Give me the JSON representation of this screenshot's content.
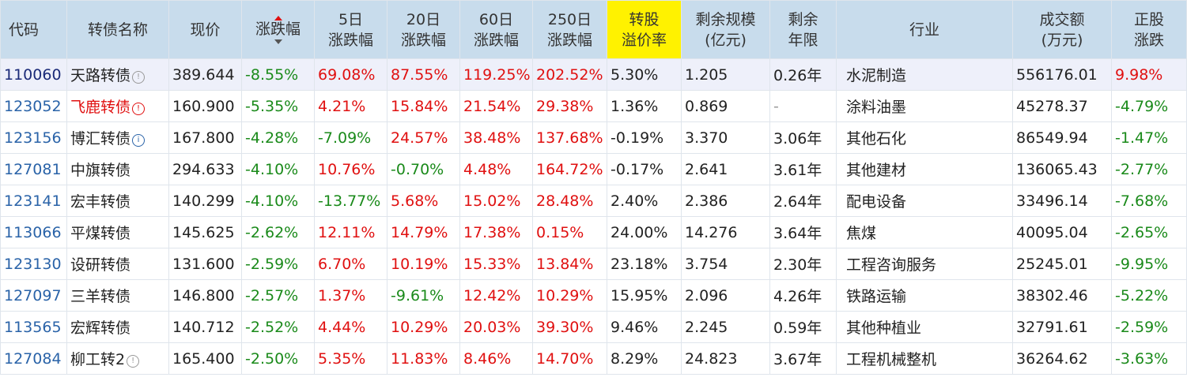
{
  "headers": {
    "code": "代码",
    "name": "转债名称",
    "price": "现价",
    "chg": "涨跌幅",
    "chg5_l1": "5日",
    "chg5_l2": "涨跌幅",
    "chg20_l1": "20日",
    "chg20_l2": "涨跌幅",
    "chg60_l1": "60日",
    "chg60_l2": "涨跌幅",
    "chg250_l1": "250日",
    "chg250_l2": "涨跌幅",
    "premium_l1": "转股",
    "premium_l2": "溢价率",
    "scale_l1": "剩余规模",
    "scale_l2": "(亿元)",
    "years_l1": "剩余",
    "years_l2": "年限",
    "industry": "行业",
    "volume_l1": "成交额",
    "volume_l2": "(万元)",
    "stock_l1": "正股",
    "stock_l2": "涨跌"
  },
  "colors": {
    "header_bg": "#c8dcec",
    "highlight": "#fff200",
    "up": "#e01010",
    "down": "#1a8a1a",
    "code": "#2a63a8"
  },
  "rows": [
    {
      "code": "110060",
      "name": "天路转债",
      "icon": "info-icon",
      "price": "389.644",
      "chg": "-8.55%",
      "chg5": "69.08%",
      "chg20": "87.55%",
      "chg60": "119.25%",
      "chg250": "202.52%",
      "premium": "5.30%",
      "scale": "1.205",
      "years": "0.26年",
      "industry": "水泥制造",
      "volume": "556176.01",
      "stock": "9.98%"
    },
    {
      "code": "123052",
      "name": "飞鹿转债",
      "icon": "alert-icon",
      "price": "160.900",
      "chg": "-5.35%",
      "chg5": "4.21%",
      "chg20": "15.84%",
      "chg60": "21.54%",
      "chg250": "29.38%",
      "premium": "1.36%",
      "scale": "0.869",
      "years": "-",
      "industry": "涂料油墨",
      "volume": "45278.37",
      "stock": "-4.79%"
    },
    {
      "code": "123156",
      "name": "博汇转债",
      "icon": "info-icon",
      "price": "167.800",
      "chg": "-4.28%",
      "chg5": "-7.09%",
      "chg20": "24.57%",
      "chg60": "38.48%",
      "chg250": "137.68%",
      "premium": "-0.19%",
      "scale": "3.370",
      "years": "3.06年",
      "industry": "其他石化",
      "volume": "86549.94",
      "stock": "-1.47%"
    },
    {
      "code": "127081",
      "name": "中旗转债",
      "icon": "",
      "price": "294.633",
      "chg": "-4.10%",
      "chg5": "10.76%",
      "chg20": "-0.70%",
      "chg60": "4.48%",
      "chg250": "164.72%",
      "premium": "-0.17%",
      "scale": "2.641",
      "years": "3.61年",
      "industry": "其他建材",
      "volume": "136065.43",
      "stock": "-2.77%"
    },
    {
      "code": "123141",
      "name": "宏丰转债",
      "icon": "",
      "price": "140.299",
      "chg": "-4.10%",
      "chg5": "-13.77%",
      "chg20": "5.68%",
      "chg60": "15.02%",
      "chg250": "28.48%",
      "premium": "2.40%",
      "scale": "2.386",
      "years": "2.64年",
      "industry": "配电设备",
      "volume": "33496.14",
      "stock": "-7.68%"
    },
    {
      "code": "113066",
      "name": "平煤转债",
      "icon": "",
      "price": "145.625",
      "chg": "-2.62%",
      "chg5": "12.11%",
      "chg20": "14.79%",
      "chg60": "17.38%",
      "chg250": "0.15%",
      "premium": "24.00%",
      "scale": "14.276",
      "years": "3.64年",
      "industry": "焦煤",
      "volume": "40095.04",
      "stock": "-2.65%"
    },
    {
      "code": "123130",
      "name": "设研转债",
      "icon": "",
      "price": "131.600",
      "chg": "-2.59%",
      "chg5": "6.70%",
      "chg20": "10.19%",
      "chg60": "15.33%",
      "chg250": "13.84%",
      "premium": "23.18%",
      "scale": "3.754",
      "years": "2.30年",
      "industry": "工程咨询服务",
      "volume": "25245.01",
      "stock": "-9.95%"
    },
    {
      "code": "127097",
      "name": "三羊转债",
      "icon": "",
      "price": "146.800",
      "chg": "-2.57%",
      "chg5": "1.37%",
      "chg20": "-9.61%",
      "chg60": "12.42%",
      "chg250": "10.29%",
      "premium": "15.95%",
      "scale": "2.096",
      "years": "4.26年",
      "industry": "铁路运输",
      "volume": "38302.46",
      "stock": "-5.22%"
    },
    {
      "code": "113565",
      "name": "宏辉转债",
      "icon": "",
      "price": "140.712",
      "chg": "-2.52%",
      "chg5": "4.44%",
      "chg20": "10.29%",
      "chg60": "20.03%",
      "chg250": "39.30%",
      "premium": "9.46%",
      "scale": "2.245",
      "years": "0.59年",
      "industry": "其他种植业",
      "volume": "32791.61",
      "stock": "-2.59%"
    },
    {
      "code": "127084",
      "name": "柳工转2",
      "icon": "info-icon",
      "price": "165.400",
      "chg": "-2.50%",
      "chg5": "5.35%",
      "chg20": "11.83%",
      "chg60": "8.46%",
      "chg250": "14.70%",
      "premium": "8.29%",
      "scale": "24.823",
      "years": "3.67年",
      "industry": "工程机械整机",
      "volume": "36264.62",
      "stock": "-3.63%"
    }
  ]
}
